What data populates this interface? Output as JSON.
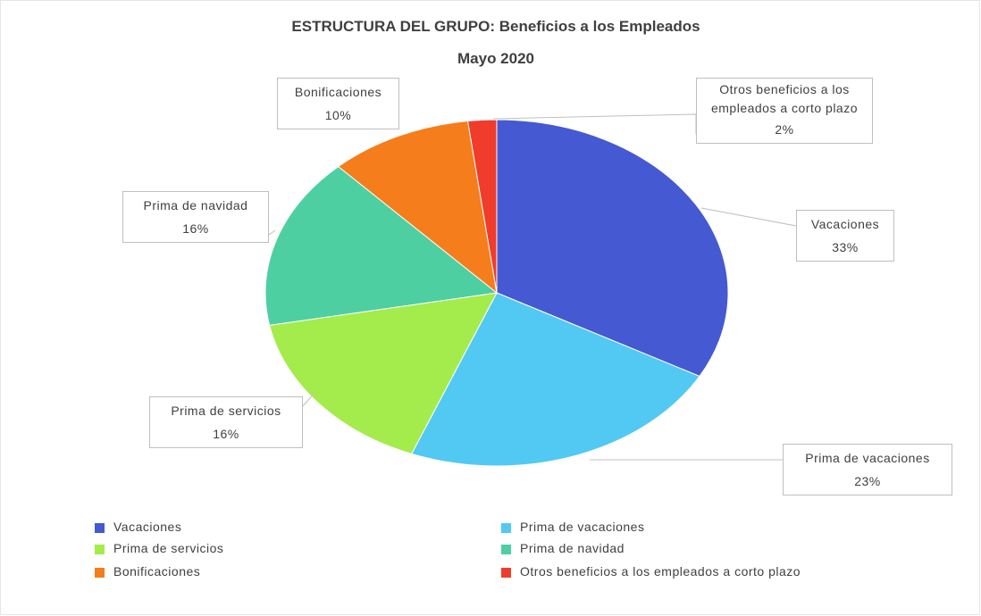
{
  "chart_data": {
    "type": "pie",
    "title": "ESTRUCTURA DEL GRUPO: Beneficios a los Empleados",
    "subtitle": "Mayo 2020",
    "categories": [
      "Vacaciones",
      "Prima de vacaciones",
      "Prima de servicios",
      "Prima de navidad",
      "Bonificaciones",
      "Otros beneficios a los empleados a corto plazo"
    ],
    "values": [
      33,
      23,
      16,
      16,
      10,
      2
    ],
    "value_labels": [
      "33%",
      "23%",
      "16%",
      "16%",
      "10%",
      "2%"
    ],
    "colors": [
      "#4459d2",
      "#52c9f2",
      "#a4eb4c",
      "#4ecfa2",
      "#f57d1c",
      "#f03c2b"
    ],
    "legend": "bottom"
  }
}
